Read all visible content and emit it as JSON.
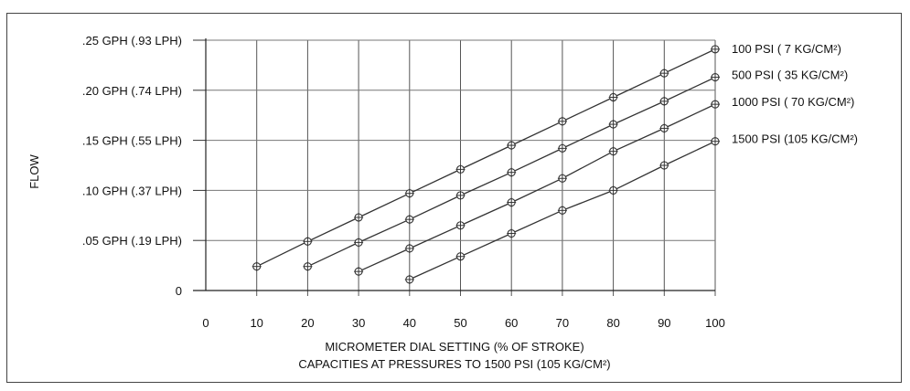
{
  "chart_data": {
    "type": "line",
    "title": "",
    "xlabel": "MICROMETER DIAL SETTING (% OF STROKE)",
    "caption": "CAPACITIES AT PRESSURES TO 1500 PSI (105 KG/CM²)",
    "ylabel": "FLOW",
    "xlim": [
      0,
      100
    ],
    "ylim": [
      0,
      0.25
    ],
    "x_ticks": [
      "0",
      "10",
      "20",
      "30",
      "40",
      "50",
      "60",
      "70",
      "80",
      "90",
      "100"
    ],
    "y_ticks": [
      {
        "value": 0,
        "label": "0"
      },
      {
        "value": 0.05,
        "label": ".05 GPH  (.19 LPH)"
      },
      {
        "value": 0.1,
        "label": ".10 GPH  (.37 LPH)"
      },
      {
        "value": 0.15,
        "label": ".15 GPH  (.55 LPH)"
      },
      {
        "value": 0.2,
        "label": ".20 GPH  (.74 LPH)"
      },
      {
        "value": 0.25,
        "label": ".25 GPH  (.93 LPH)"
      }
    ],
    "grid": true,
    "legend": "right",
    "series": [
      {
        "name": "100 PSI  (   7 KG/CM²)",
        "x": [
          10,
          20,
          30,
          40,
          50,
          60,
          70,
          80,
          90,
          100
        ],
        "y": [
          0.024,
          0.049,
          0.073,
          0.097,
          0.121,
          0.145,
          0.169,
          0.193,
          0.217,
          0.241
        ]
      },
      {
        "name": "500 PSI  (  35 KG/CM²)",
        "x": [
          20,
          30,
          40,
          50,
          60,
          70,
          80,
          90,
          100
        ],
        "y": [
          0.024,
          0.048,
          0.071,
          0.095,
          0.118,
          0.142,
          0.166,
          0.189,
          0.213
        ]
      },
      {
        "name": "1000 PSI  (  70 KG/CM²)",
        "x": [
          30,
          40,
          50,
          60,
          70,
          80,
          90,
          100
        ],
        "y": [
          0.019,
          0.042,
          0.065,
          0.088,
          0.112,
          0.139,
          0.162,
          0.186
        ]
      },
      {
        "name": "1500 PSI  (105 KG/CM²)",
        "x": [
          40,
          50,
          60,
          70,
          80,
          90,
          100
        ],
        "y": [
          0.011,
          0.034,
          0.057,
          0.08,
          0.1,
          0.125,
          0.149
        ]
      }
    ]
  }
}
